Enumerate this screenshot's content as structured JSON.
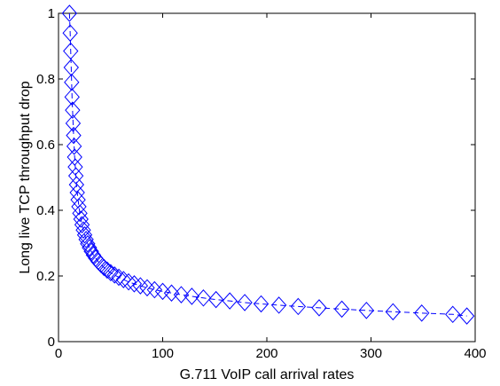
{
  "chart_data": {
    "type": "line",
    "title": "",
    "xlabel": "G.711 VoIP call arrival rates",
    "ylabel": "Long live TCP throughput drop",
    "xlim": [
      0,
      400
    ],
    "ylim": [
      0,
      1
    ],
    "xticks": [
      0,
      100,
      200,
      300,
      400
    ],
    "yticks": [
      0,
      0.2,
      0.4,
      0.6,
      0.8,
      1
    ],
    "ytick_labels": [
      "0",
      "0.2",
      "0.4",
      "0.6",
      "0.8",
      "1"
    ],
    "grid": false,
    "series": [
      {
        "marker": "diamond",
        "line_style": "dashed",
        "color": "#0000ff",
        "x": [
          10.5,
          11.2,
          11.7,
          12.2,
          12.6,
          13.0,
          13.5,
          14.0,
          14.5,
          15.0,
          15.5,
          16.1,
          16.7,
          17.3,
          18.0,
          18.8,
          19.6,
          20.5,
          21.5,
          22.6,
          23.8,
          25.1,
          26.5,
          28.0,
          29.7,
          31.5,
          33.5,
          35.7,
          38.1,
          40.7,
          43.6,
          46.7,
          50.1,
          53.8,
          57.9,
          62.4,
          67.3,
          72.7,
          78.6,
          85.1,
          92.2,
          100.0,
          108.5,
          117.8,
          128.0,
          139.1,
          151.2,
          164.4,
          178.8,
          194.5,
          211.6,
          230.1,
          250.2,
          272.0,
          295.6,
          321.1,
          348.7,
          378.5,
          392.0
        ],
        "y": [
          1.0,
          0.94,
          0.885,
          0.835,
          0.79,
          0.745,
          0.705,
          0.665,
          0.628,
          0.595,
          0.562,
          0.532,
          0.505,
          0.478,
          0.454,
          0.432,
          0.411,
          0.391,
          0.373,
          0.356,
          0.34,
          0.325,
          0.311,
          0.298,
          0.286,
          0.275,
          0.264,
          0.254,
          0.244,
          0.235,
          0.226,
          0.218,
          0.21,
          0.203,
          0.196,
          0.189,
          0.182,
          0.176,
          0.17,
          0.164,
          0.158,
          0.153,
          0.148,
          0.143,
          0.138,
          0.133,
          0.128,
          0.124,
          0.119,
          0.115,
          0.111,
          0.107,
          0.103,
          0.099,
          0.095,
          0.091,
          0.087,
          0.083,
          0.078
        ]
      }
    ]
  }
}
